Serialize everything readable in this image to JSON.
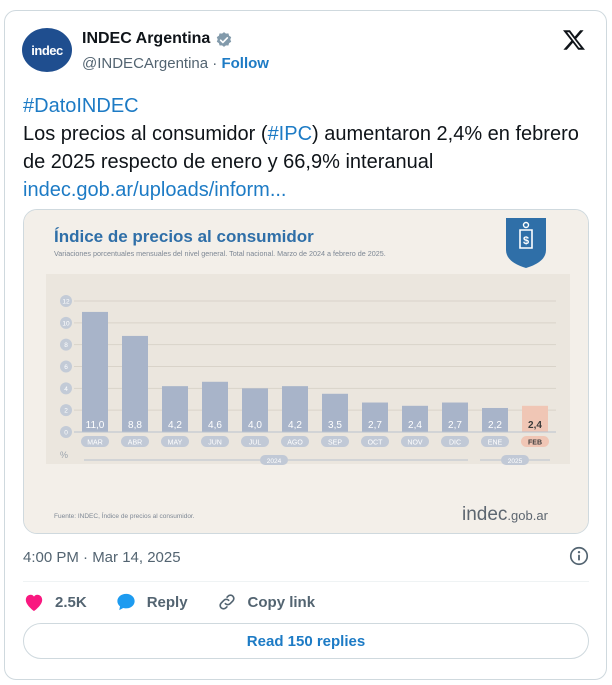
{
  "tweet": {
    "avatar_text": "indec",
    "display_name": "INDEC Argentina",
    "handle": "@INDECArgentina",
    "separator": "·",
    "follow_label": "Follow",
    "hashtag": "#DatoINDEC",
    "text_before": "Los precios al consumidor (",
    "ipc_tag": "#IPC",
    "text_after": ") aumentaron 2,4% en febrero de 2025 respecto de enero y 66,9% interanual",
    "link": "indec.gob.ar/uploads/inform...",
    "timestamp": "4:00 PM · Mar 14, 2025"
  },
  "actions": {
    "likes": "2.5K",
    "reply_label": "Reply",
    "copy_link_label": "Copy link",
    "read_replies_label": "Read 150 replies"
  },
  "colors": {
    "accent": "#1d7bc5",
    "bar": "#a8b4c9",
    "bar_highlight": "#f0c6b5",
    "like": "#f91880",
    "chart_title": "#2f6fa8"
  },
  "chart_data": {
    "type": "bar",
    "title": "Índice de precios al consumidor",
    "subtitle": "Variaciones porcentuales mensuales del nivel general. Total nacional. Marzo de 2024 a febrero de 2025.",
    "ylabel": "%",
    "ylim": [
      0,
      12
    ],
    "yticks": [
      0,
      2,
      4,
      6,
      8,
      10,
      12
    ],
    "categories": [
      "MAR",
      "ABR",
      "MAY",
      "JUN",
      "JUL",
      "AGO",
      "SEP",
      "OCT",
      "NOV",
      "DIC",
      "ENE",
      "FEB"
    ],
    "values": [
      11.0,
      8.8,
      4.2,
      4.6,
      4.0,
      4.2,
      3.5,
      2.7,
      2.4,
      2.7,
      2.2,
      2.4
    ],
    "value_labels": [
      "11,0",
      "8,8",
      "4,2",
      "4,6",
      "4,0",
      "4,2",
      "3,5",
      "2,7",
      "2,4",
      "2,7",
      "2,2",
      "2,4"
    ],
    "year_labels": [
      "2024",
      "2025"
    ],
    "highlight_category": "FEB",
    "source": "Fuente: INDEC, Índice de precios al consumidor.",
    "brand": "indec",
    "brand_suffix": ".gob.ar",
    "grid": true
  }
}
